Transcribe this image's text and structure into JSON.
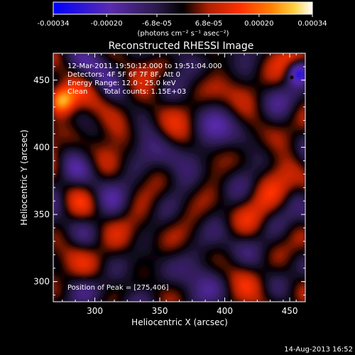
{
  "colorbar": {
    "ticks": [
      "-0.00034",
      "-0.00020",
      "-6.8e-05",
      "6.8e-05",
      "0.00020",
      "0.00034"
    ],
    "tick_values": [
      -0.00034,
      -0.0002,
      -6.8e-05,
      6.8e-05,
      0.0002,
      0.00034
    ],
    "range": [
      -0.00034,
      0.00034
    ],
    "units_label": "(photons cm⁻² s⁻¹ asec⁻²)",
    "colors": [
      "#0000ff",
      "#5a2bb0",
      "#2a1a4a",
      "#000000",
      "#b02000",
      "#ff3000",
      "#ff8000",
      "#ffd040",
      "#ffffff"
    ]
  },
  "chart_data": {
    "type": "heatmap",
    "title": "Reconstructed RHESSI Image",
    "xlabel": "Heliocentric X (arcsec)",
    "ylabel": "Heliocentric Y (arcsec)",
    "xlim": [
      268,
      462
    ],
    "ylim": [
      285,
      470
    ],
    "xticks": [
      300,
      350,
      400,
      450
    ],
    "yticks": [
      300,
      350,
      400,
      450
    ],
    "annotations": {
      "time_range": "12-Mar-2011 19:50:12.000 to 19:51:04.000",
      "detectors": "Detectors: 4F 5F 6F 7F 8F, Att 0",
      "energy_range": "Energy Range: 12.0 - 25.0 keV",
      "clean": "Clean",
      "total_counts": "Total counts: 1.15E+03",
      "peak": "Position of Peak = [275,406]"
    },
    "peak_position": [
      275,
      406
    ],
    "grid": false
  },
  "footer": {
    "date": "14-Aug-2013 16:52"
  }
}
